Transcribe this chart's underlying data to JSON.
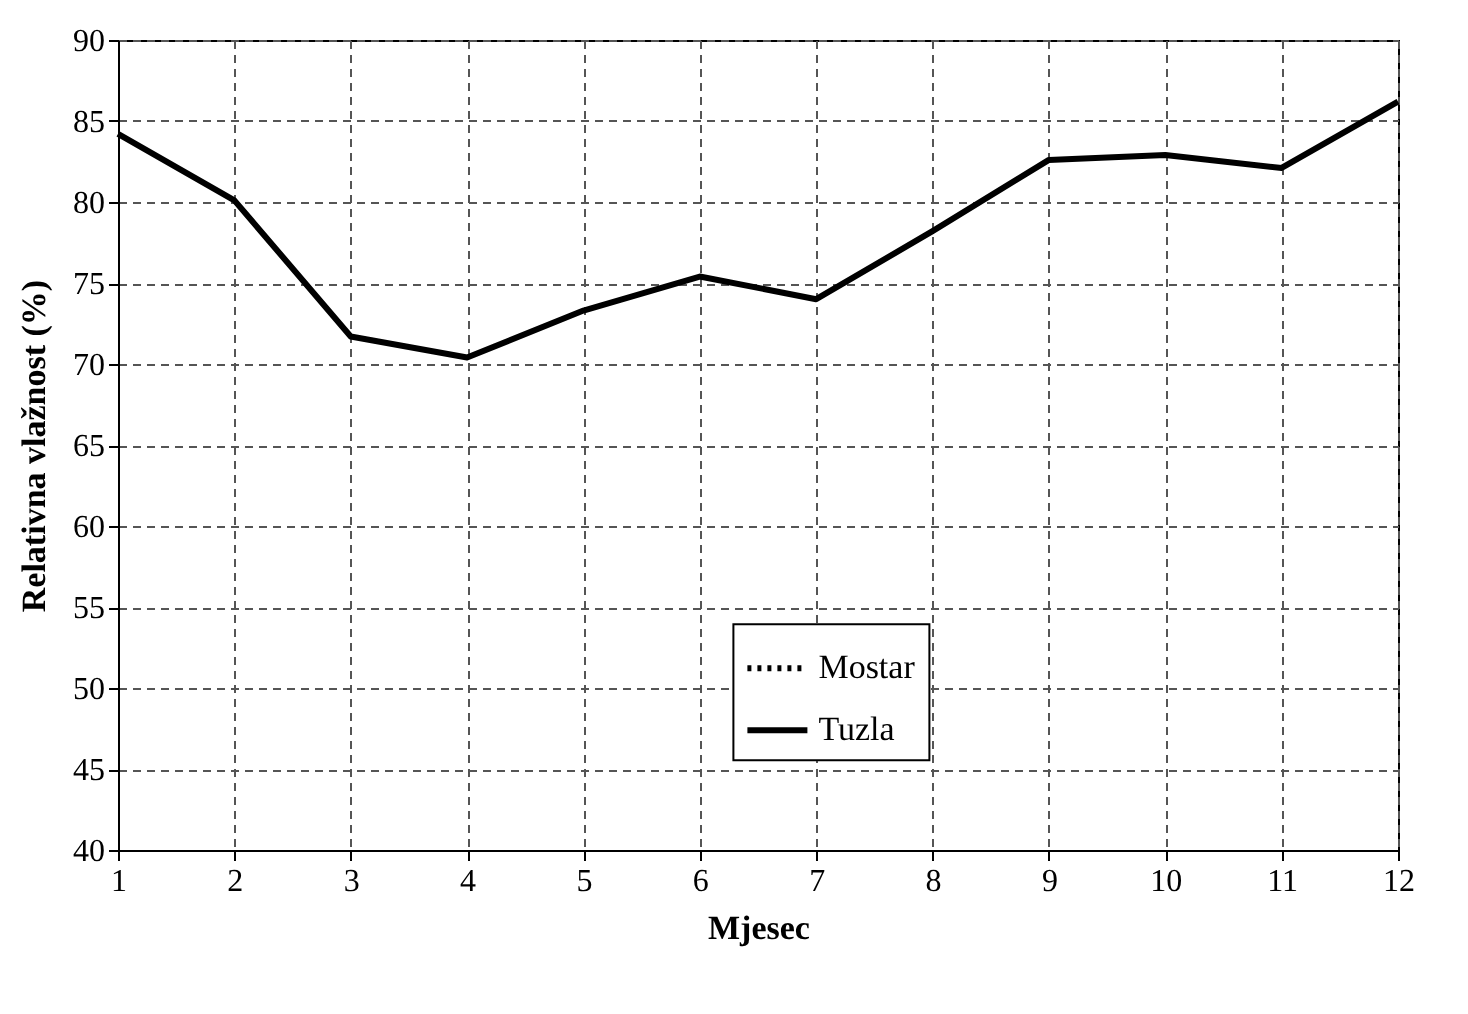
{
  "chart_data": {
    "type": "line",
    "xlabel": "Mjesec",
    "ylabel": "Relativna vlažnost (%)",
    "x": [
      1,
      2,
      3,
      4,
      5,
      6,
      7,
      8,
      9,
      10,
      11,
      12
    ],
    "series": [
      {
        "name": "Mostar",
        "color": "#000000",
        "line_style": "dotted",
        "values": [
          null,
          null,
          null,
          null,
          null,
          null,
          null,
          null,
          null,
          null,
          null,
          null
        ]
      },
      {
        "name": "Tuzla",
        "color": "#000000",
        "line_style": "solid",
        "values": [
          84.2,
          80.1,
          71.7,
          70.4,
          73.3,
          75.4,
          74.0,
          78.2,
          82.6,
          82.9,
          82.1,
          86.2
        ]
      }
    ],
    "xlim": [
      1,
      12
    ],
    "xticks": [
      1,
      2,
      3,
      4,
      5,
      6,
      7,
      8,
      9,
      10,
      11,
      12
    ],
    "ylim": [
      40,
      90
    ],
    "yticks": [
      40,
      45,
      50,
      55,
      60,
      65,
      70,
      75,
      80,
      85,
      90
    ],
    "grid": true,
    "legend": "bottom"
  }
}
